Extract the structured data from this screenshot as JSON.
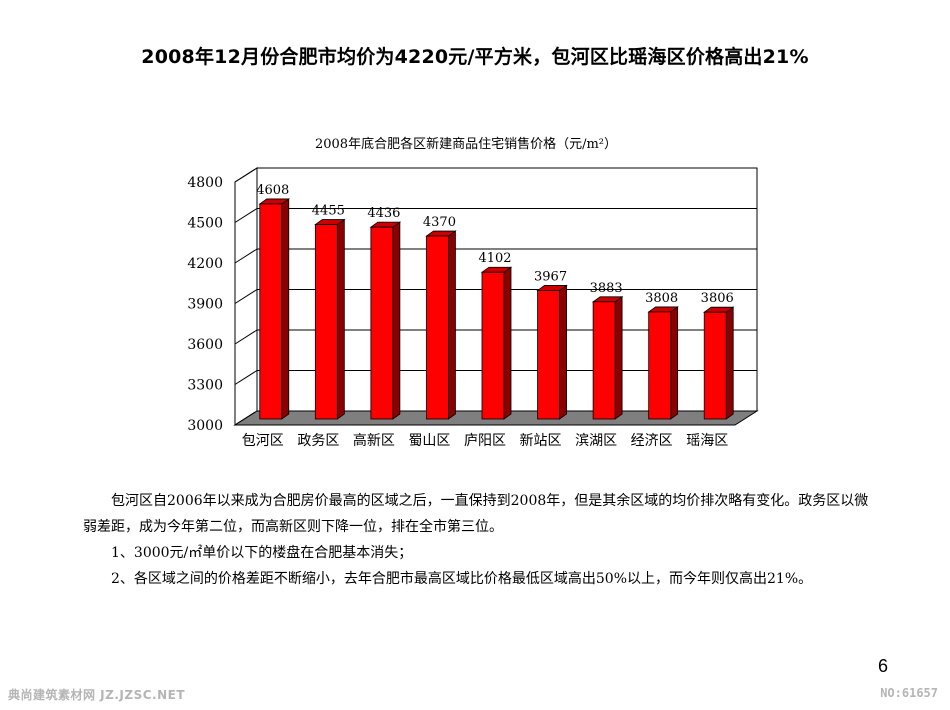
{
  "slide": {
    "title": "2008年12月份合肥市均价为4220元/平方米，包河区比瑶海区价格高出21%",
    "page_number": "6"
  },
  "chart_data": {
    "type": "bar",
    "title": "2008年底合肥各区新建商品住宅销售价格（元/m²）",
    "categories": [
      "包河区",
      "政务区",
      "高新区",
      "蜀山区",
      "庐阳区",
      "新站区",
      "滨湖区",
      "经济区",
      "瑶海区"
    ],
    "values": [
      4608,
      4455,
      4436,
      4370,
      4102,
      3967,
      3883,
      3808,
      3806
    ],
    "ylim": [
      3000,
      4800
    ],
    "yticks": [
      3000,
      3300,
      3600,
      3900,
      4200,
      4500,
      4800
    ],
    "grid": true,
    "bar_color": "#ff0000",
    "bar_side_color": "#8b0000",
    "floor_color": "#7f7f7f"
  },
  "body": {
    "paragraphs": [
      "包河区自2006年以来成为合肥房价最高的区域之后，一直保持到2008年，但是其余区域的均价排次略有变化。政务区以微弱差距，成为今年第二位，而高新区则下降一位，排在全市第三位。",
      "1、3000元/㎡单价以下的楼盘在合肥基本消失；",
      "2、各区域之间的价格差距不断缩小，去年合肥市最高区域比价格最低区域高出50%以上，而今年则仅高出21%。"
    ]
  },
  "watermark": {
    "left": "典尚建筑素材网 JZ.JZSC.NET",
    "right": "NO:61657"
  }
}
